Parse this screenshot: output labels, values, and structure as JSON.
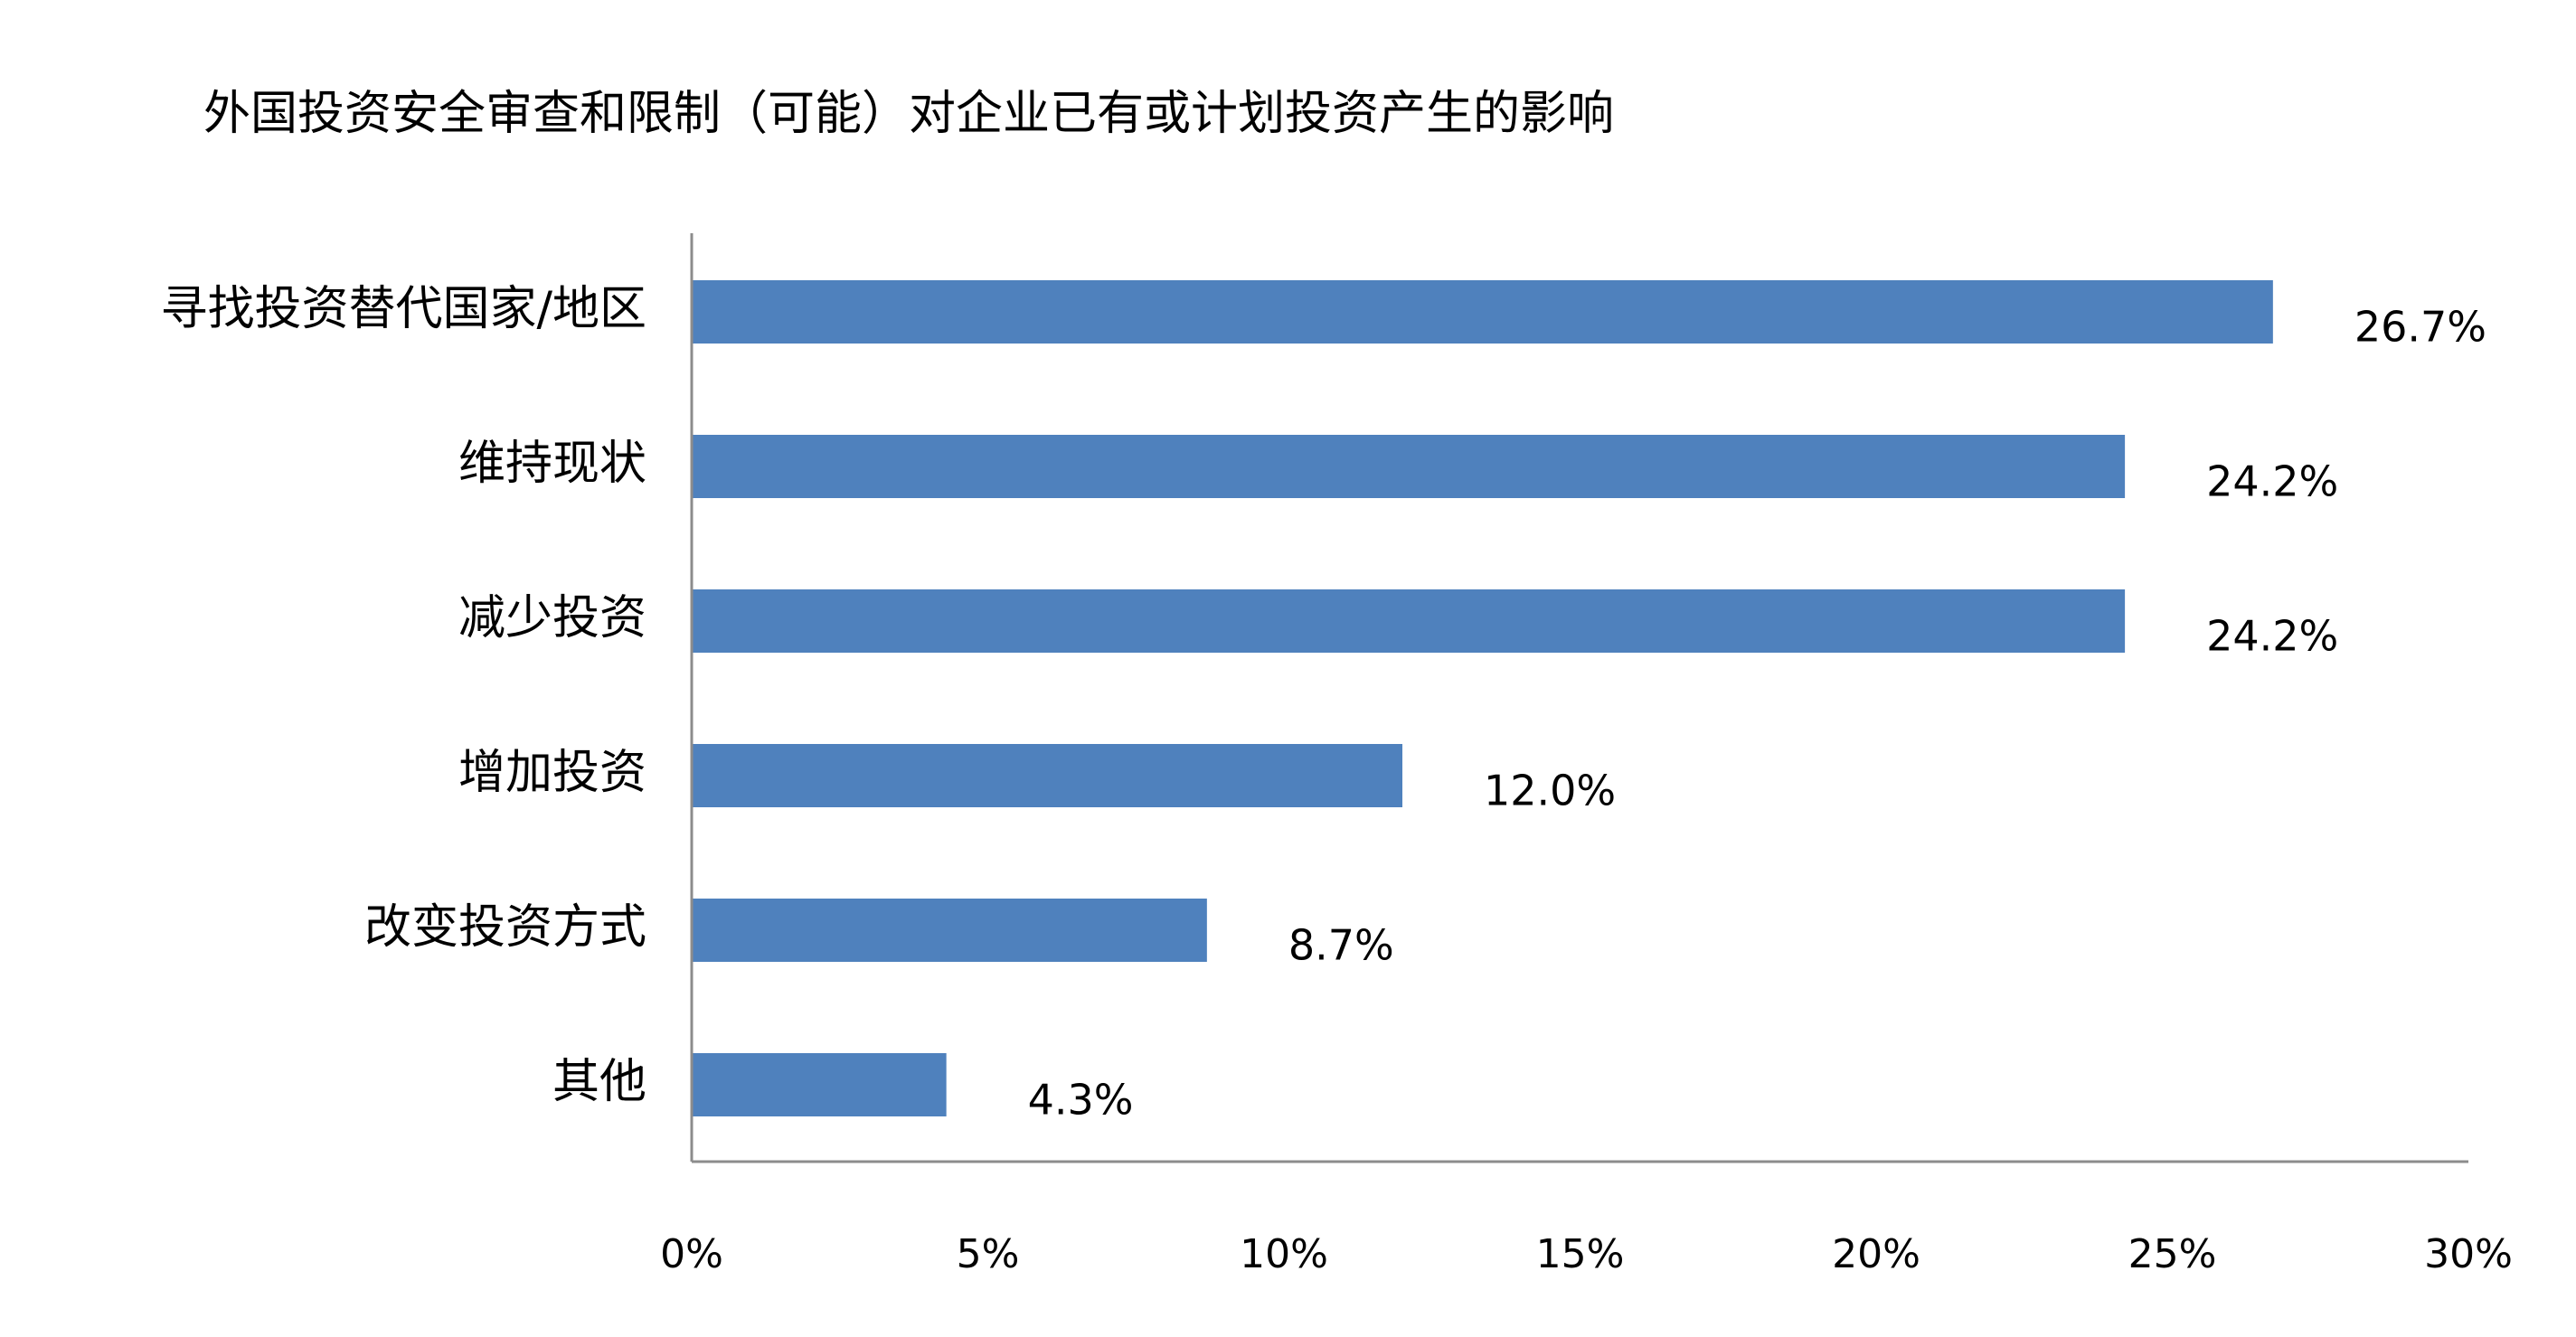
{
  "chart_data": {
    "type": "bar",
    "orientation": "horizontal",
    "title": "外国投资安全审查和限制（可能）对企业已有或计划投资产生的影响",
    "categories": [
      "寻找投资替代国家/地区",
      "维持现状",
      "减少投资",
      "增加投资",
      "改变投资方式",
      "其他"
    ],
    "values": [
      26.7,
      24.2,
      24.2,
      12.0,
      8.7,
      4.3
    ],
    "data_labels": [
      "26.7%",
      "24.2%",
      "24.2%",
      "12.0%",
      "8.7%",
      "4.3%"
    ],
    "xlim": [
      0,
      30
    ],
    "ticks": [
      0,
      5,
      10,
      15,
      20,
      25,
      30
    ],
    "tick_labels": [
      "0%",
      "5%",
      "10%",
      "15%",
      "20%",
      "25%",
      "30%"
    ],
    "xlabel": "",
    "ylabel": "",
    "grid": false,
    "legend": "none",
    "bar_color": "#4f81bd"
  }
}
